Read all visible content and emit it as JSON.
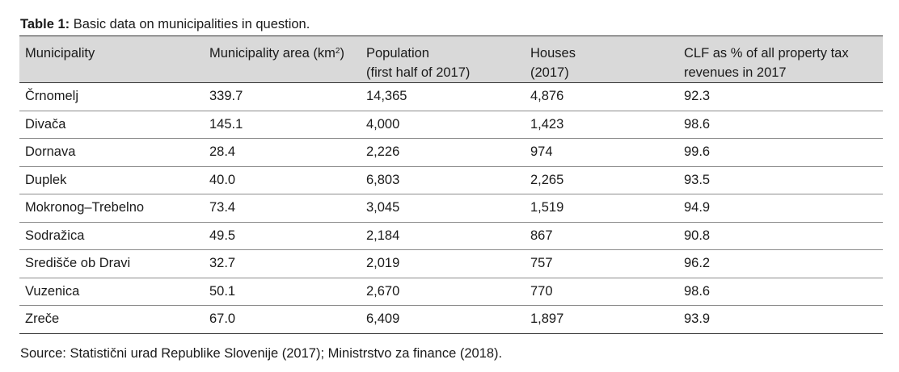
{
  "caption": {
    "label": "Table 1:",
    "text": "Basic data on municipalities in question."
  },
  "table": {
    "headers": [
      {
        "line1": "Municipality",
        "line2": ""
      },
      {
        "line1": "Municipality area (km",
        "sup": "2",
        "line1_end": ")",
        "line2": ""
      },
      {
        "line1": "Population",
        "line2": "(first half of 2017)"
      },
      {
        "line1": "Houses",
        "line2": "(2017)"
      },
      {
        "line1": "CLF as % of all property tax",
        "line2": "revenues in 2017"
      }
    ],
    "rows": [
      [
        "Črnomelj",
        "339.7",
        "14,365",
        "4,876",
        "92.3"
      ],
      [
        "Divača",
        "145.1",
        "4,000",
        "1,423",
        "98.6"
      ],
      [
        "Dornava",
        "28.4",
        "2,226",
        "974",
        "99.6"
      ],
      [
        "Duplek",
        "40.0",
        "6,803",
        "2,265",
        "93.5"
      ],
      [
        "Mokronog–Trebelno",
        "73.4",
        "3,045",
        "1,519",
        "94.9"
      ],
      [
        "Sodražica",
        "49.5",
        "2,184",
        "867",
        "90.8"
      ],
      [
        "Središče ob Dravi",
        "32.7",
        "2,019",
        "757",
        "96.2"
      ],
      [
        "Vuzenica",
        "50.1",
        "2,670",
        "770",
        "98.6"
      ],
      [
        "Zreče",
        "67.0",
        "6,409",
        "1,897",
        "93.9"
      ]
    ]
  },
  "source": "Source: Statistični urad Republike Slovenije (2017); Ministrstvo za finance (2018).",
  "colors": {
    "header_bg": "#d9d9d9",
    "rule_dark": "#333333",
    "rule_light": "#8c8c8c",
    "text": "#1a1a1a"
  }
}
